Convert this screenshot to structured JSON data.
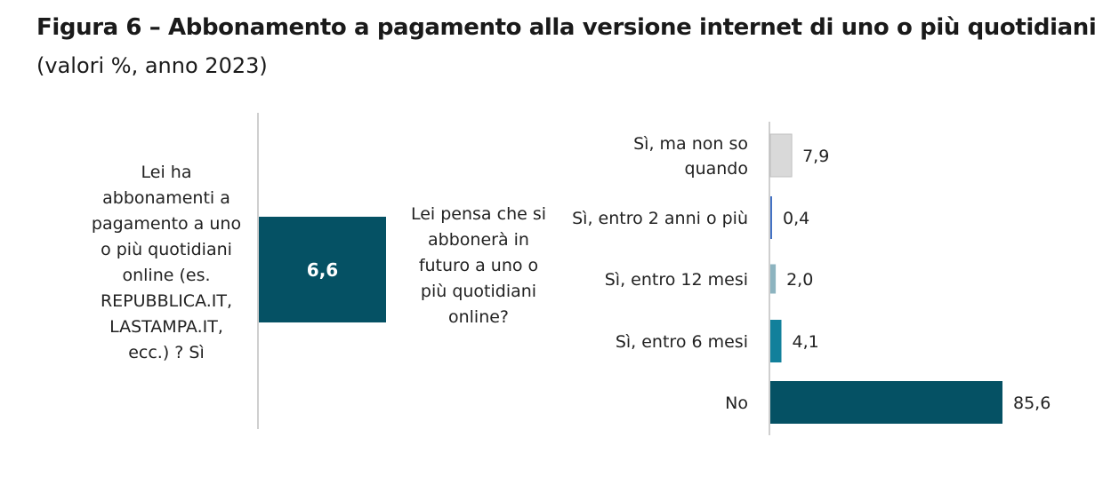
{
  "title": "Figura 6 – Abbonamento a pagamento alla versione internet di uno o più quotidiani",
  "subtitle": "(valori %, anno 2023)",
  "colors": {
    "dark_teal": "#055164",
    "mid_teal": "#12809B",
    "light_teal": "#8DB4C0",
    "blue_line": "#4472C4",
    "light_grey": "#D9D9D9",
    "axis": "#BFBFBF"
  },
  "chart_data": [
    {
      "type": "bar",
      "question_lines": [
        "Lei ha",
        "abbonamenti a",
        "pagamento a uno",
        "o più quotidiani",
        "online (es.",
        "REPUBBLICA.IT,",
        "LASTAMPA.IT,",
        "ecc.) ? Sì"
      ],
      "categories": [
        "Sì"
      ],
      "values": [
        6.6
      ],
      "value_labels": [
        "6,6"
      ],
      "bar_colors": [
        "#055164"
      ]
    },
    {
      "type": "bar",
      "orientation": "horizontal",
      "question_lines": [
        "Lei pensa che si",
        "abbonerà in",
        "futuro a uno o",
        "più quotidiani",
        "online?"
      ],
      "categories": [
        [
          "Sì, ma non so",
          "quando"
        ],
        [
          "Sì, entro 2 anni o più"
        ],
        [
          "Sì, entro 12 mesi"
        ],
        [
          "Sì, entro 6 mesi"
        ],
        [
          "No"
        ]
      ],
      "values": [
        7.9,
        0.4,
        2.0,
        4.1,
        85.6
      ],
      "value_labels": [
        "7,9",
        "0,4",
        "2,0",
        "4,1",
        "85,6"
      ],
      "bar_colors": [
        "#D9D9D9",
        "#4472C4",
        "#8DB4C0",
        "#12809B",
        "#055164"
      ],
      "xlim": [
        0,
        100
      ]
    }
  ]
}
